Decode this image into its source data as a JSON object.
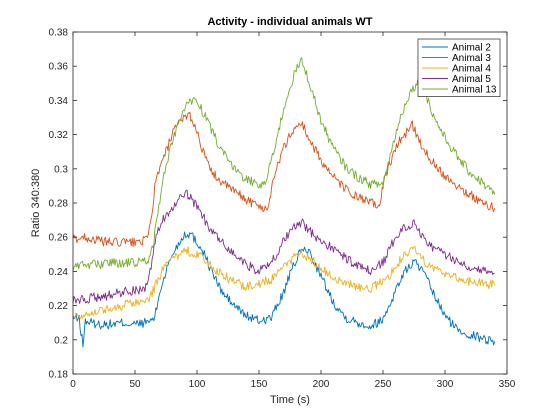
{
  "chart_data": {
    "type": "line",
    "title": "Activity - individual animals WT",
    "xlabel": "Time (s)",
    "ylabel": "Ratio 340:380",
    "xlim": [
      0,
      350
    ],
    "ylim": [
      0.18,
      0.38
    ],
    "xticks": [
      0,
      50,
      100,
      150,
      200,
      250,
      300,
      350
    ],
    "yticks": [
      0.18,
      0.2,
      0.22,
      0.24,
      0.26,
      0.28,
      0.3,
      0.32,
      0.34,
      0.36,
      0.38
    ],
    "xtick_labels": [
      "0",
      "50",
      "100",
      "150",
      "200",
      "250",
      "300",
      "350"
    ],
    "ytick_labels": [
      "0.18",
      "0.2",
      "0.22",
      "0.24",
      "0.26",
      "0.28",
      "0.3",
      "0.32",
      "0.34",
      "0.36",
      "0.38"
    ],
    "grid": false,
    "box": true,
    "legend_position": "top-right",
    "series": [
      {
        "name": "Animal 2",
        "color": "#0072BD",
        "x": [
          0,
          5,
          8,
          10,
          20,
          30,
          40,
          50,
          58,
          62,
          66,
          70,
          75,
          80,
          85,
          90,
          95,
          100,
          105,
          110,
          120,
          130,
          140,
          150,
          160,
          170,
          175,
          180,
          185,
          190,
          195,
          200,
          210,
          220,
          230,
          240,
          250,
          258,
          262,
          266,
          270,
          275,
          280,
          285,
          290,
          300,
          310,
          320,
          330,
          340
        ],
        "y": [
          0.213,
          0.212,
          0.197,
          0.211,
          0.209,
          0.209,
          0.21,
          0.209,
          0.21,
          0.211,
          0.213,
          0.228,
          0.24,
          0.25,
          0.256,
          0.262,
          0.262,
          0.257,
          0.252,
          0.243,
          0.228,
          0.22,
          0.214,
          0.211,
          0.213,
          0.228,
          0.238,
          0.247,
          0.253,
          0.252,
          0.245,
          0.237,
          0.222,
          0.213,
          0.21,
          0.208,
          0.212,
          0.225,
          0.232,
          0.238,
          0.242,
          0.246,
          0.242,
          0.236,
          0.228,
          0.214,
          0.206,
          0.203,
          0.201,
          0.199
        ]
      },
      {
        "name": "Animal 3",
        "color": "#D95319",
        "x": [
          0,
          10,
          20,
          30,
          40,
          50,
          55,
          60,
          63,
          66,
          70,
          75,
          80,
          85,
          90,
          93,
          95,
          100,
          105,
          110,
          120,
          130,
          140,
          150,
          155,
          158,
          160,
          165,
          170,
          175,
          180,
          183,
          185,
          190,
          200,
          210,
          220,
          230,
          240,
          245,
          248,
          250,
          255,
          260,
          265,
          270,
          273,
          275,
          280,
          290,
          300,
          310,
          320,
          330,
          340
        ],
        "y": [
          0.259,
          0.26,
          0.258,
          0.257,
          0.257,
          0.257,
          0.258,
          0.258,
          0.27,
          0.29,
          0.3,
          0.31,
          0.32,
          0.326,
          0.33,
          0.333,
          0.33,
          0.322,
          0.31,
          0.3,
          0.292,
          0.287,
          0.282,
          0.278,
          0.277,
          0.278,
          0.29,
          0.302,
          0.312,
          0.32,
          0.324,
          0.327,
          0.326,
          0.318,
          0.305,
          0.295,
          0.288,
          0.283,
          0.28,
          0.279,
          0.279,
          0.291,
          0.302,
          0.312,
          0.318,
          0.322,
          0.327,
          0.324,
          0.315,
          0.304,
          0.296,
          0.29,
          0.285,
          0.28,
          0.277
        ]
      },
      {
        "name": "Animal 4",
        "color": "#EDB120",
        "x": [
          0,
          10,
          20,
          30,
          40,
          50,
          58,
          63,
          67,
          72,
          77,
          82,
          87,
          92,
          97,
          100,
          105,
          110,
          120,
          130,
          140,
          150,
          160,
          170,
          175,
          180,
          185,
          190,
          195,
          200,
          210,
          220,
          230,
          240,
          250,
          258,
          262,
          266,
          270,
          275,
          280,
          285,
          290,
          300,
          310,
          320,
          330,
          340
        ],
        "y": [
          0.214,
          0.215,
          0.217,
          0.218,
          0.22,
          0.222,
          0.222,
          0.226,
          0.233,
          0.24,
          0.245,
          0.248,
          0.25,
          0.252,
          0.251,
          0.25,
          0.248,
          0.244,
          0.238,
          0.234,
          0.231,
          0.233,
          0.235,
          0.242,
          0.246,
          0.25,
          0.251,
          0.248,
          0.245,
          0.242,
          0.237,
          0.233,
          0.231,
          0.23,
          0.234,
          0.24,
          0.245,
          0.248,
          0.25,
          0.253,
          0.249,
          0.245,
          0.242,
          0.239,
          0.236,
          0.234,
          0.233,
          0.232
        ]
      },
      {
        "name": "Animal 5",
        "color": "#7E2F8E",
        "x": [
          0,
          10,
          20,
          30,
          40,
          50,
          58,
          63,
          67,
          72,
          77,
          82,
          87,
          92,
          95,
          100,
          105,
          110,
          120,
          130,
          140,
          150,
          160,
          170,
          175,
          180,
          185,
          190,
          200,
          210,
          220,
          230,
          240,
          250,
          258,
          262,
          266,
          270,
          275,
          280,
          285,
          290,
          300,
          310,
          320,
          330,
          340
        ],
        "y": [
          0.223,
          0.224,
          0.225,
          0.226,
          0.228,
          0.229,
          0.23,
          0.242,
          0.26,
          0.27,
          0.275,
          0.278,
          0.283,
          0.285,
          0.283,
          0.278,
          0.272,
          0.265,
          0.257,
          0.25,
          0.244,
          0.24,
          0.245,
          0.258,
          0.263,
          0.267,
          0.268,
          0.264,
          0.258,
          0.253,
          0.248,
          0.243,
          0.24,
          0.245,
          0.257,
          0.262,
          0.265,
          0.267,
          0.268,
          0.263,
          0.258,
          0.254,
          0.25,
          0.246,
          0.243,
          0.241,
          0.239
        ]
      },
      {
        "name": "Animal 13",
        "color": "#77AC30",
        "x": [
          0,
          10,
          20,
          30,
          40,
          50,
          60,
          63,
          66,
          70,
          75,
          80,
          85,
          90,
          95,
          98,
          100,
          105,
          110,
          120,
          130,
          140,
          150,
          155,
          160,
          165,
          170,
          175,
          180,
          184,
          185,
          190,
          195,
          200,
          210,
          220,
          230,
          240,
          250,
          255,
          260,
          265,
          270,
          275,
          278,
          280,
          285,
          290,
          300,
          310,
          320,
          330,
          340
        ],
        "y": [
          0.243,
          0.244,
          0.244,
          0.245,
          0.245,
          0.245,
          0.246,
          0.25,
          0.262,
          0.282,
          0.302,
          0.316,
          0.327,
          0.335,
          0.34,
          0.341,
          0.339,
          0.333,
          0.325,
          0.31,
          0.3,
          0.294,
          0.291,
          0.291,
          0.305,
          0.32,
          0.335,
          0.348,
          0.358,
          0.363,
          0.362,
          0.352,
          0.34,
          0.328,
          0.312,
          0.301,
          0.295,
          0.291,
          0.291,
          0.305,
          0.32,
          0.332,
          0.342,
          0.348,
          0.35,
          0.349,
          0.343,
          0.332,
          0.318,
          0.307,
          0.298,
          0.292,
          0.285
        ]
      }
    ]
  }
}
